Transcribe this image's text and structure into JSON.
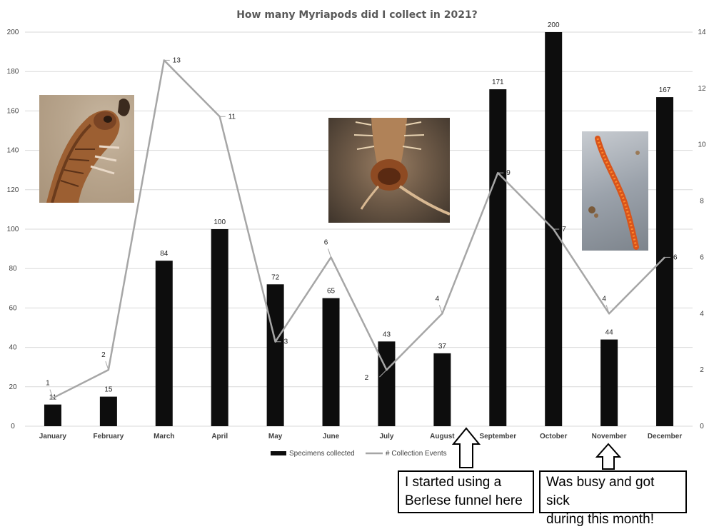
{
  "chart_data": {
    "type": "bar",
    "title": "How many Myriapods did I collect in 2021?",
    "categories": [
      "January",
      "February",
      "March",
      "April",
      "May",
      "June",
      "July",
      "August",
      "September",
      "October",
      "November",
      "December"
    ],
    "series": [
      {
        "name": "Specimens collected",
        "type": "bar",
        "axis": "left",
        "color": "#0d0d0d",
        "values": [
          11,
          15,
          84,
          100,
          72,
          65,
          43,
          37,
          171,
          200,
          44,
          167
        ]
      },
      {
        "name": "# Collection Events",
        "type": "line",
        "axis": "right",
        "color": "#a6a6a6",
        "values": [
          1,
          2,
          13,
          11,
          3,
          6,
          2,
          4,
          9,
          7,
          4,
          6
        ]
      }
    ],
    "y_left": {
      "min": 0,
      "max": 200,
      "ticks": [
        "0",
        "20",
        "40",
        "60",
        "80",
        "100",
        "120",
        "140",
        "160",
        "180",
        "200"
      ]
    },
    "y_right": {
      "min": 0,
      "max": 14,
      "ticks": [
        "0",
        "2",
        "4",
        "6",
        "8",
        "10",
        "12",
        "14"
      ]
    },
    "grid": true,
    "legend_position": "bottom"
  },
  "annotations": {
    "callout_1": {
      "line1": "I started using a",
      "line2": "Berlese funnel here"
    },
    "callout_2": {
      "line1": "Was busy and got sick",
      "line2": "during this month!"
    }
  },
  "photos": {
    "photo_1": "millipede-head-icon",
    "photo_2": "centipede-head-icon",
    "photo_3": "orange-millipede-icon"
  }
}
